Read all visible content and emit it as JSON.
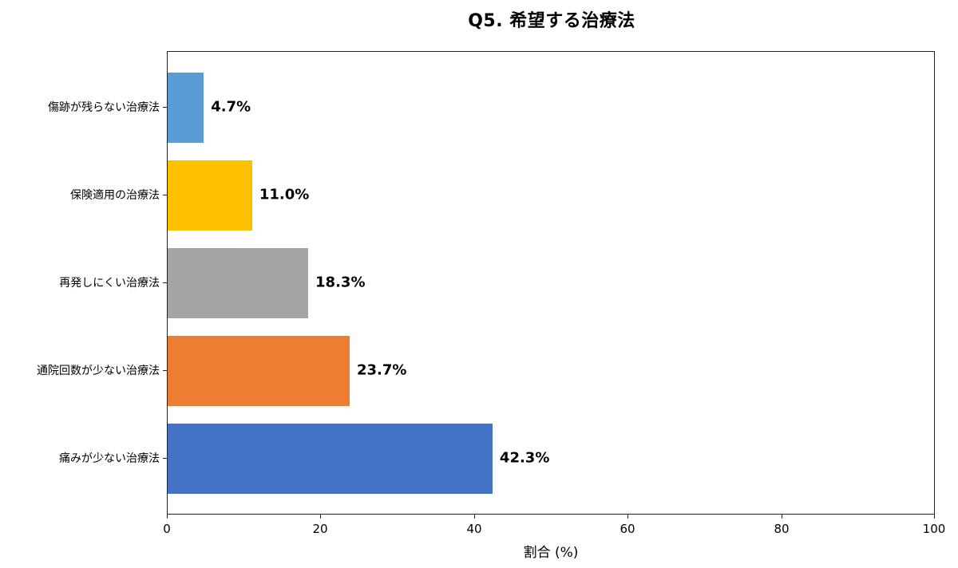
{
  "chart_data": {
    "type": "bar",
    "orientation": "horizontal",
    "title": "Q5. 希望する治療法",
    "xlabel": "割合 (%)",
    "ylabel": "",
    "xlim": [
      0,
      100
    ],
    "xticks": [
      "0",
      "20",
      "40",
      "60",
      "80",
      "100"
    ],
    "categories": [
      "傷跡が残らない治療法",
      "保険適用の治療法",
      "再発しにくい治療法",
      "通院回数が少ない治療法",
      "痛みが少ない治療法"
    ],
    "values": [
      4.7,
      11.0,
      18.3,
      23.7,
      42.3
    ],
    "value_labels": [
      "4.7%",
      "11.0%",
      "18.3%",
      "23.7%",
      "42.3%"
    ],
    "colors": [
      "#5b9bd5",
      "#ffc000",
      "#a5a5a5",
      "#ed7d31",
      "#4472c4"
    ],
    "grid": false,
    "legend": null
  }
}
